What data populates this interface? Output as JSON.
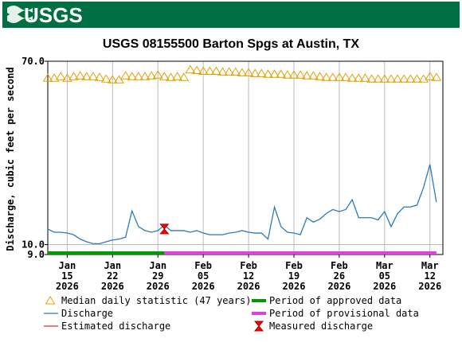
{
  "logo": "USGS",
  "chart_data": {
    "type": "line",
    "title": "USGS 08155500 Barton Spgs at Austin, TX",
    "y_label": "Discharge, cubic feet per second",
    "ylog": true,
    "grid": true,
    "ylim": [
      9,
      70
    ],
    "yticks": [
      {
        "value": 70,
        "label": "70.0"
      },
      {
        "value": 10,
        "label": "10.0"
      },
      {
        "value": 9,
        "label": "9.0"
      }
    ],
    "xlim": [
      "2026-01-12",
      "2026-03-14"
    ],
    "xticks": [
      {
        "value": "2026-01-15",
        "label": "Jan 15 2026"
      },
      {
        "value": "2026-01-22",
        "label": "Jan 22 2026"
      },
      {
        "value": "2026-01-29",
        "label": "Jan 29 2026"
      },
      {
        "value": "2026-02-05",
        "label": "Feb 05 2026"
      },
      {
        "value": "2026-02-12",
        "label": "Feb 12 2026"
      },
      {
        "value": "2026-02-19",
        "label": "Feb 19 2026"
      },
      {
        "value": "2026-02-26",
        "label": "Feb 26 2026"
      },
      {
        "value": "2026-03-05",
        "label": "Mar 05 2026"
      },
      {
        "value": "2026-03-12",
        "label": "Mar 12 2026"
      }
    ],
    "x": [
      "2026-01-12",
      "2026-01-13",
      "2026-01-14",
      "2026-01-15",
      "2026-01-16",
      "2026-01-17",
      "2026-01-18",
      "2026-01-19",
      "2026-01-20",
      "2026-01-21",
      "2026-01-22",
      "2026-01-23",
      "2026-01-24",
      "2026-01-25",
      "2026-01-26",
      "2026-01-27",
      "2026-01-28",
      "2026-01-29",
      "2026-01-30",
      "2026-01-31",
      "2026-02-01",
      "2026-02-02",
      "2026-02-03",
      "2026-02-04",
      "2026-02-05",
      "2026-02-06",
      "2026-02-07",
      "2026-02-08",
      "2026-02-09",
      "2026-02-10",
      "2026-02-11",
      "2026-02-12",
      "2026-02-13",
      "2026-02-14",
      "2026-02-15",
      "2026-02-16",
      "2026-02-17",
      "2026-02-18",
      "2026-02-19",
      "2026-02-20",
      "2026-02-21",
      "2026-02-22",
      "2026-02-23",
      "2026-02-24",
      "2026-02-25",
      "2026-02-26",
      "2026-02-27",
      "2026-02-28",
      "2026-03-01",
      "2026-03-02",
      "2026-03-03",
      "2026-03-04",
      "2026-03-05",
      "2026-03-06",
      "2026-03-07",
      "2026-03-08",
      "2026-03-09",
      "2026-03-10",
      "2026-03-11",
      "2026-03-12",
      "2026-03-13"
    ],
    "series": [
      {
        "name": "Median daily statistic (47 years)",
        "color": "#e6a100",
        "marker": "triangle",
        "values": [
          58.5,
          58.5,
          59.5,
          58.5,
          59.5,
          60,
          59.5,
          59.5,
          59,
          58,
          57.5,
          57.5,
          60,
          59.5,
          59.5,
          59.5,
          60,
          60.5,
          59.5,
          59,
          59.5,
          59,
          64,
          63.5,
          63,
          63,
          63,
          62.5,
          62.5,
          62.5,
          62,
          62,
          61.5,
          61.5,
          61,
          61,
          61,
          60.5,
          60.5,
          60.5,
          60,
          60,
          59.5,
          59,
          59,
          59,
          59,
          58.5,
          58.5,
          58.5,
          58,
          58,
          58,
          58,
          58,
          58,
          58,
          58,
          58,
          59.5,
          59
        ]
      },
      {
        "name": "Discharge",
        "color": "#2b7bb9",
        "values": [
          11.8,
          11.4,
          11.4,
          11.3,
          11.1,
          10.6,
          10.3,
          10.1,
          10.1,
          10.3,
          10.5,
          10.6,
          10.8,
          14.3,
          12.1,
          11.6,
          11.4,
          11.6,
          12.3,
          11.6,
          11.6,
          11.6,
          11.4,
          11.6,
          11.3,
          11.1,
          11.1,
          11.1,
          11.3,
          11.4,
          11.6,
          11.4,
          11.3,
          11.3,
          10.6,
          14.9,
          12.1,
          11.4,
          11.3,
          11.1,
          13.3,
          12.7,
          13.1,
          13.9,
          14.5,
          14.2,
          14.5,
          16.1,
          13.3,
          13.3,
          13.3,
          13,
          14.2,
          12.1,
          13.9,
          14.9,
          14.9,
          15.2,
          18.3,
          23.4,
          15.7
        ]
      }
    ],
    "estimated": {
      "name": "Estimated discharge",
      "color": "#c00000"
    },
    "measured": {
      "name": "Measured discharge",
      "color": "#ff0000",
      "x": [
        "2026-01-30"
      ],
      "values": [
        11.8
      ]
    },
    "approved": {
      "name": "Period of approved data",
      "color": "#009900",
      "x": [
        "2026-01-12",
        "2026-01-30"
      ]
    },
    "provisional": {
      "name": "Period of provisional data",
      "color": "#e040e0",
      "x": [
        "2026-01-30",
        "2026-03-13"
      ]
    }
  }
}
